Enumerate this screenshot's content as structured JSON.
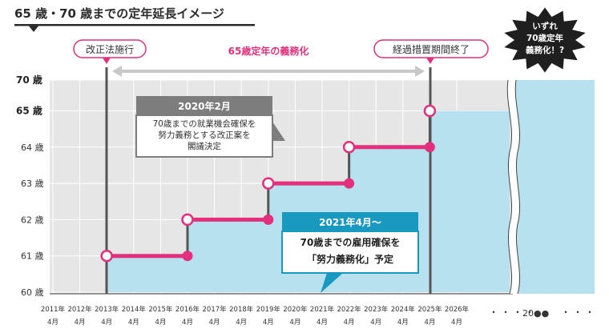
{
  "title": "65 歳・70 歳までの定年延長イメージ",
  "chart_data": {
    "type": "step",
    "y_ticks": [
      "60 歳",
      "61 歳",
      "62 歳",
      "63 歳",
      "64 歳",
      "65 歳",
      "70 歳"
    ],
    "x_years": [
      "2011年",
      "2012年",
      "2013年",
      "2014年",
      "2015年",
      "2016年",
      "2017年",
      "2018年",
      "2019年",
      "2020年",
      "2021年",
      "2022年",
      "2023年",
      "2024年",
      "2025年",
      "2026年"
    ],
    "x_month": "4月",
    "x_far_label": "20●●",
    "step_points": [
      {
        "year": 2013,
        "age": 61
      },
      {
        "year": 2016,
        "age": 62
      },
      {
        "year": 2019,
        "age": 63
      },
      {
        "year": 2022,
        "age": 64
      },
      {
        "year": 2025,
        "age": 65
      }
    ],
    "step_ends": [
      {
        "year": 2016,
        "age": 61
      },
      {
        "year": 2019,
        "age": 62
      },
      {
        "year": 2022,
        "age": 63
      },
      {
        "year": 2025,
        "age": 64
      }
    ],
    "markers": [
      {
        "year": 2013,
        "label": "改正法施行"
      },
      {
        "year": 2025,
        "label": "経過措置期間終了"
      }
    ],
    "span_label": "65歳定年の義務化",
    "colors": {
      "pink": "#e2307c",
      "area": "#b7e1ee",
      "bg": "#e6e6e6",
      "gray_box": "#7d7d7d",
      "teal": "#1a99c0",
      "burst": "#1f1f1f"
    }
  },
  "callouts": {
    "gray_box": {
      "head": "2020年2月",
      "lines": [
        "70歳までの就業機会確保を",
        "努力義務とする改正案を",
        "閣議決定"
      ]
    },
    "teal_box": {
      "head": "2021年4月～",
      "lines": [
        "70歳までの雇用確保を",
        "「努力義務化」予定"
      ]
    },
    "burst": {
      "lines": [
        "いずれ",
        "70歳定年",
        "義務化！?"
      ]
    }
  }
}
